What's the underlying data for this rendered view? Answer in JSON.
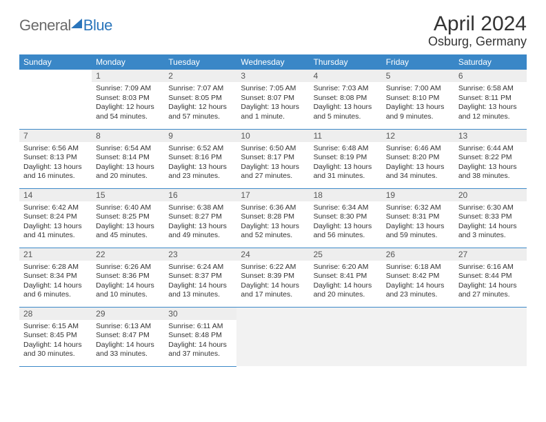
{
  "logo": {
    "text1": "General",
    "text2": "Blue"
  },
  "title": "April 2024",
  "location": "Osburg, Germany",
  "colors": {
    "header_bg": "#3a87c7",
    "header_text": "#ffffff",
    "daynum_bg": "#eeeeee",
    "border": "#3a87c7",
    "empty_bg": "#f2f2f2",
    "logo_gray": "#6a6a6a",
    "logo_blue": "#2a75bb"
  },
  "weekdays": [
    "Sunday",
    "Monday",
    "Tuesday",
    "Wednesday",
    "Thursday",
    "Friday",
    "Saturday"
  ],
  "weeks": [
    [
      null,
      {
        "n": "1",
        "sr": "Sunrise: 7:09 AM",
        "ss": "Sunset: 8:03 PM",
        "d1": "Daylight: 12 hours",
        "d2": "and 54 minutes."
      },
      {
        "n": "2",
        "sr": "Sunrise: 7:07 AM",
        "ss": "Sunset: 8:05 PM",
        "d1": "Daylight: 12 hours",
        "d2": "and 57 minutes."
      },
      {
        "n": "3",
        "sr": "Sunrise: 7:05 AM",
        "ss": "Sunset: 8:07 PM",
        "d1": "Daylight: 13 hours",
        "d2": "and 1 minute."
      },
      {
        "n": "4",
        "sr": "Sunrise: 7:03 AM",
        "ss": "Sunset: 8:08 PM",
        "d1": "Daylight: 13 hours",
        "d2": "and 5 minutes."
      },
      {
        "n": "5",
        "sr": "Sunrise: 7:00 AM",
        "ss": "Sunset: 8:10 PM",
        "d1": "Daylight: 13 hours",
        "d2": "and 9 minutes."
      },
      {
        "n": "6",
        "sr": "Sunrise: 6:58 AM",
        "ss": "Sunset: 8:11 PM",
        "d1": "Daylight: 13 hours",
        "d2": "and 12 minutes."
      }
    ],
    [
      {
        "n": "7",
        "sr": "Sunrise: 6:56 AM",
        "ss": "Sunset: 8:13 PM",
        "d1": "Daylight: 13 hours",
        "d2": "and 16 minutes."
      },
      {
        "n": "8",
        "sr": "Sunrise: 6:54 AM",
        "ss": "Sunset: 8:14 PM",
        "d1": "Daylight: 13 hours",
        "d2": "and 20 minutes."
      },
      {
        "n": "9",
        "sr": "Sunrise: 6:52 AM",
        "ss": "Sunset: 8:16 PM",
        "d1": "Daylight: 13 hours",
        "d2": "and 23 minutes."
      },
      {
        "n": "10",
        "sr": "Sunrise: 6:50 AM",
        "ss": "Sunset: 8:17 PM",
        "d1": "Daylight: 13 hours",
        "d2": "and 27 minutes."
      },
      {
        "n": "11",
        "sr": "Sunrise: 6:48 AM",
        "ss": "Sunset: 8:19 PM",
        "d1": "Daylight: 13 hours",
        "d2": "and 31 minutes."
      },
      {
        "n": "12",
        "sr": "Sunrise: 6:46 AM",
        "ss": "Sunset: 8:20 PM",
        "d1": "Daylight: 13 hours",
        "d2": "and 34 minutes."
      },
      {
        "n": "13",
        "sr": "Sunrise: 6:44 AM",
        "ss": "Sunset: 8:22 PM",
        "d1": "Daylight: 13 hours",
        "d2": "and 38 minutes."
      }
    ],
    [
      {
        "n": "14",
        "sr": "Sunrise: 6:42 AM",
        "ss": "Sunset: 8:24 PM",
        "d1": "Daylight: 13 hours",
        "d2": "and 41 minutes."
      },
      {
        "n": "15",
        "sr": "Sunrise: 6:40 AM",
        "ss": "Sunset: 8:25 PM",
        "d1": "Daylight: 13 hours",
        "d2": "and 45 minutes."
      },
      {
        "n": "16",
        "sr": "Sunrise: 6:38 AM",
        "ss": "Sunset: 8:27 PM",
        "d1": "Daylight: 13 hours",
        "d2": "and 49 minutes."
      },
      {
        "n": "17",
        "sr": "Sunrise: 6:36 AM",
        "ss": "Sunset: 8:28 PM",
        "d1": "Daylight: 13 hours",
        "d2": "and 52 minutes."
      },
      {
        "n": "18",
        "sr": "Sunrise: 6:34 AM",
        "ss": "Sunset: 8:30 PM",
        "d1": "Daylight: 13 hours",
        "d2": "and 56 minutes."
      },
      {
        "n": "19",
        "sr": "Sunrise: 6:32 AM",
        "ss": "Sunset: 8:31 PM",
        "d1": "Daylight: 13 hours",
        "d2": "and 59 minutes."
      },
      {
        "n": "20",
        "sr": "Sunrise: 6:30 AM",
        "ss": "Sunset: 8:33 PM",
        "d1": "Daylight: 14 hours",
        "d2": "and 3 minutes."
      }
    ],
    [
      {
        "n": "21",
        "sr": "Sunrise: 6:28 AM",
        "ss": "Sunset: 8:34 PM",
        "d1": "Daylight: 14 hours",
        "d2": "and 6 minutes."
      },
      {
        "n": "22",
        "sr": "Sunrise: 6:26 AM",
        "ss": "Sunset: 8:36 PM",
        "d1": "Daylight: 14 hours",
        "d2": "and 10 minutes."
      },
      {
        "n": "23",
        "sr": "Sunrise: 6:24 AM",
        "ss": "Sunset: 8:37 PM",
        "d1": "Daylight: 14 hours",
        "d2": "and 13 minutes."
      },
      {
        "n": "24",
        "sr": "Sunrise: 6:22 AM",
        "ss": "Sunset: 8:39 PM",
        "d1": "Daylight: 14 hours",
        "d2": "and 17 minutes."
      },
      {
        "n": "25",
        "sr": "Sunrise: 6:20 AM",
        "ss": "Sunset: 8:41 PM",
        "d1": "Daylight: 14 hours",
        "d2": "and 20 minutes."
      },
      {
        "n": "26",
        "sr": "Sunrise: 6:18 AM",
        "ss": "Sunset: 8:42 PM",
        "d1": "Daylight: 14 hours",
        "d2": "and 23 minutes."
      },
      {
        "n": "27",
        "sr": "Sunrise: 6:16 AM",
        "ss": "Sunset: 8:44 PM",
        "d1": "Daylight: 14 hours",
        "d2": "and 27 minutes."
      }
    ],
    [
      {
        "n": "28",
        "sr": "Sunrise: 6:15 AM",
        "ss": "Sunset: 8:45 PM",
        "d1": "Daylight: 14 hours",
        "d2": "and 30 minutes."
      },
      {
        "n": "29",
        "sr": "Sunrise: 6:13 AM",
        "ss": "Sunset: 8:47 PM",
        "d1": "Daylight: 14 hours",
        "d2": "and 33 minutes."
      },
      {
        "n": "30",
        "sr": "Sunrise: 6:11 AM",
        "ss": "Sunset: 8:48 PM",
        "d1": "Daylight: 14 hours",
        "d2": "and 37 minutes."
      },
      null,
      null,
      null,
      null
    ]
  ]
}
